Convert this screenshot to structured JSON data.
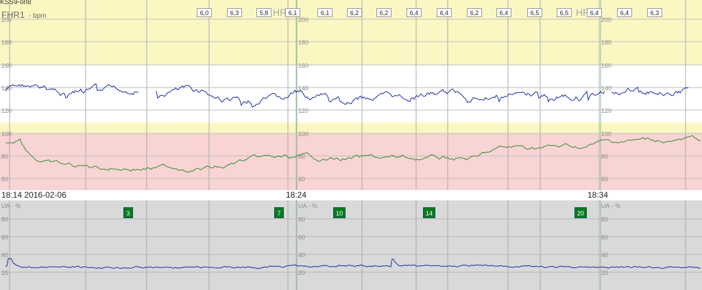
{
  "window": {
    "title": "KSS\\Förl8"
  },
  "fhr_panel": {
    "label": "FHR1",
    "unit": "- bpm",
    "hr_ghost_label": "HR",
    "hr_ghost_label_2": "HR",
    "y_ticks": [
      "200",
      "180",
      "160",
      "140",
      "120",
      "100",
      "80",
      "60"
    ],
    "zones": {
      "upper_color": "#fbf7c3",
      "normal_color": "#ffffff",
      "lower_yellow_color": "#fbf7c3",
      "mhr_color": "#f9d4d4"
    },
    "stv_values": [
      "6,0",
      "6,3",
      "5,8",
      "6,1",
      "6,1",
      "6,2",
      "6,2",
      "6,4",
      "6,4",
      "6,2",
      "6,4",
      "6,5",
      "6,5",
      "6,4",
      "6,4",
      "6,3"
    ]
  },
  "times": {
    "start": "18:14 2016-02-06",
    "mid": "18:24",
    "end": "18:34"
  },
  "ua_panel": {
    "label": "UA - %",
    "y_ticks": [
      "80",
      "60",
      "40",
      "20"
    ],
    "background": "#d9d9d9"
  },
  "event_markers": [
    "3",
    "7",
    "10",
    "14",
    "20"
  ],
  "colors": {
    "fhr_trace": "#1a2aa0",
    "mhr_trace": "#2f8a2f",
    "ua_trace": "#1a2aa0",
    "grid": "#9a9a9a",
    "mark_green": "#0a7a1e"
  }
}
